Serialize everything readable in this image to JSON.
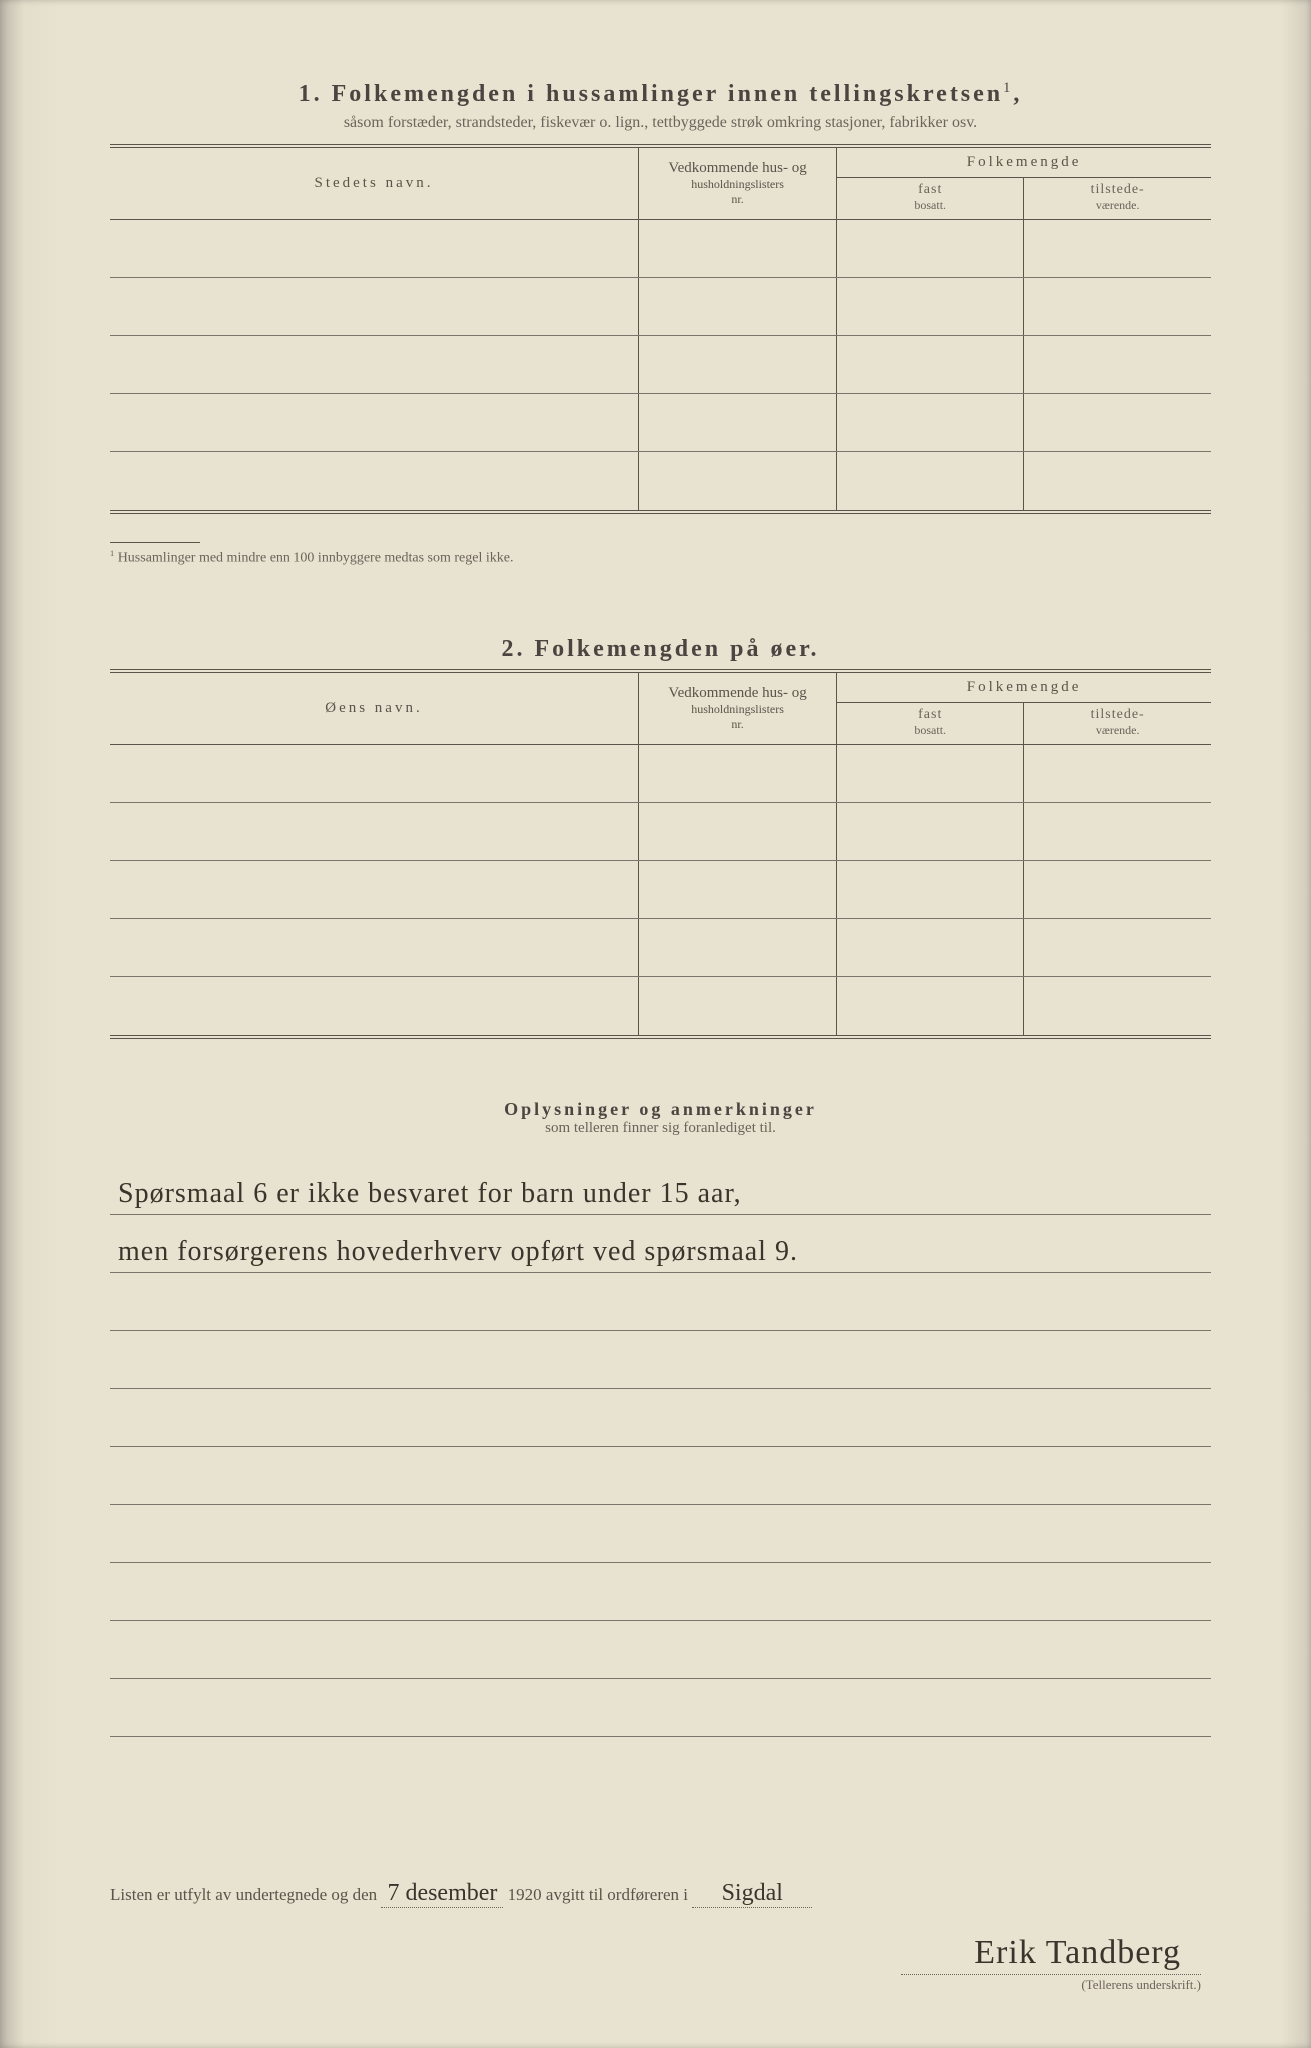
{
  "page_bg": "#e8e2d0",
  "ink": "#4a4540",
  "rule": "#5a544a",
  "section1": {
    "number": "1.",
    "title": "Folkemengden i hussamlinger innen tellingskretsen",
    "sup": "1",
    "subtitle": "såsom forstæder, strandsteder, fiskevær o. lign., tettbyggede strøk omkring stasjoner, fabrikker osv.",
    "col_name": "Stedets navn.",
    "col_nr_l1": "Vedkommende hus- og",
    "col_nr_l2": "husholdningslisters",
    "col_nr_l3": "nr.",
    "col_folk": "Folkemengde",
    "col_fast_l1": "fast",
    "col_fast_l2": "bosatt.",
    "col_til_l1": "tilstede-",
    "col_til_l2": "værende.",
    "blank_rows": 5,
    "footnote_marker": "1",
    "footnote": "Hussamlinger med mindre enn 100 innbyggere medtas som regel ikke."
  },
  "section2": {
    "number": "2.",
    "title": "Folkemengden på øer.",
    "col_name": "Øens navn.",
    "col_nr_l1": "Vedkommende hus- og",
    "col_nr_l2": "husholdningslisters",
    "col_nr_l3": "nr.",
    "col_folk": "Folkemengde",
    "col_fast_l1": "fast",
    "col_fast_l2": "bosatt.",
    "col_til_l1": "tilstede-",
    "col_til_l2": "værende.",
    "blank_rows": 5
  },
  "remarks": {
    "title": "Oplysninger og anmerkninger",
    "subtitle": "som telleren finner sig foranlediget til.",
    "lines": [
      "Spørsmaal 6 er ikke besvaret for barn under 15 aar,",
      "men forsørgerens hovederhverv opført ved spørsmaal 9.",
      "",
      "",
      "",
      "",
      "",
      "",
      "",
      ""
    ]
  },
  "footer": {
    "prefix": "Listen er utfylt av undertegnede og den",
    "date": "7 desember",
    "year": "1920",
    "mid": "avgitt til ordføreren i",
    "place": "Sigdal",
    "signature": "Erik Tandberg",
    "sig_label": "(Tellerens underskrift.)"
  }
}
